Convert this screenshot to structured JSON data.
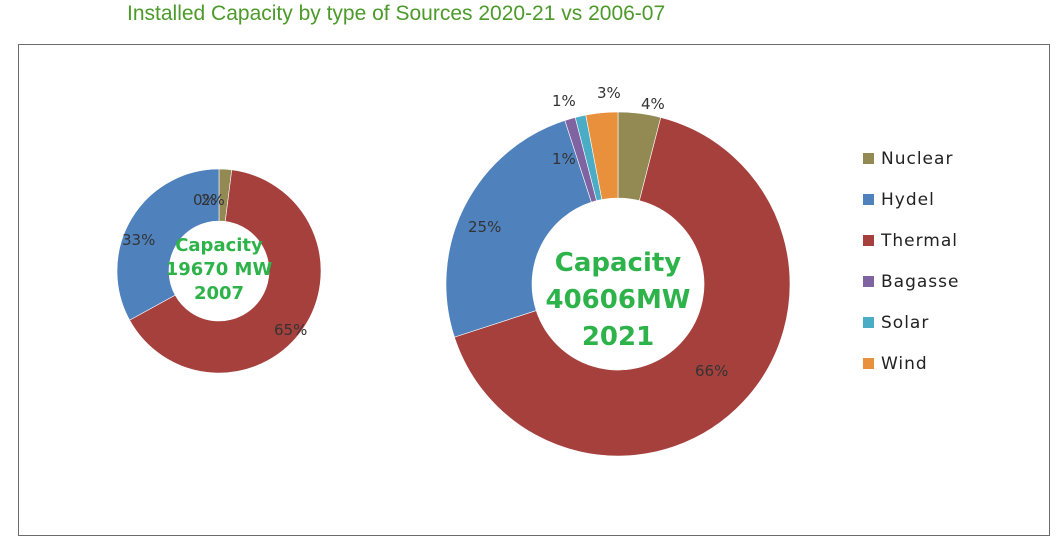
{
  "title": "Installed Capacity by type of Sources 2020-21 vs 2006-07",
  "colors": {
    "Nuclear": "#938953",
    "Hydel": "#4f81bd",
    "Thermal": "#a5403d",
    "Bagasse": "#8064a2",
    "Solar": "#4bacc6",
    "Wind": "#e8903c",
    "center_text": "#2db34a",
    "title": "#4c9a2a"
  },
  "chart_data": [
    {
      "type": "pie",
      "variant": "donut",
      "center_label": [
        "Capacity",
        "19670 MW",
        "2007"
      ],
      "categories": [
        "Nuclear",
        "Hydel",
        "Thermal"
      ],
      "values": [
        2,
        33,
        65
      ],
      "data_labels": [
        "2%",
        "33%",
        "65%"
      ],
      "overlapping_labels": [
        "0%",
        "2%"
      ],
      "legend_position": "right"
    },
    {
      "type": "pie",
      "variant": "donut",
      "center_label": [
        "Capacity",
        "40606MW",
        "2021"
      ],
      "categories": [
        "Nuclear",
        "Hydel",
        "Thermal",
        "Bagasse",
        "Solar",
        "Wind"
      ],
      "values": [
        4,
        25,
        66,
        1,
        1,
        3
      ],
      "data_labels": [
        "4%",
        "25%",
        "66%",
        "1%",
        "1%",
        "3%"
      ],
      "legend_position": "right"
    }
  ],
  "legend": [
    "Nuclear",
    "Hydel",
    "Thermal",
    "Bagasse",
    "Solar",
    "Wind"
  ]
}
